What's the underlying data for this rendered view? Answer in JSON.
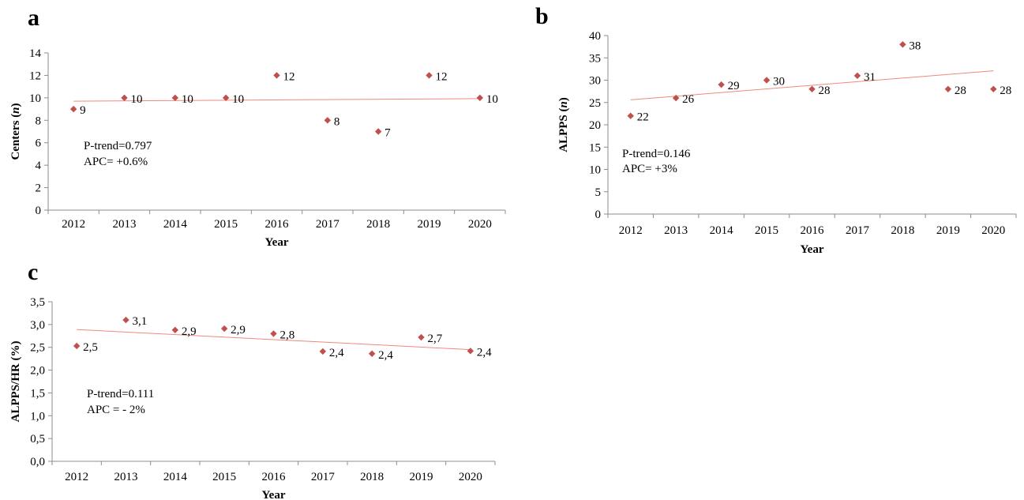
{
  "chart_data": [
    {
      "id": "a",
      "type": "scatter",
      "panel_letter": "a",
      "x": [
        "2012",
        "2013",
        "2014",
        "2015",
        "2016",
        "2017",
        "2018",
        "2019",
        "2020"
      ],
      "values": [
        9,
        10,
        10,
        10,
        12,
        8,
        7,
        12,
        10
      ],
      "value_labels": [
        "9",
        "10",
        "10",
        "10",
        "12",
        "8",
        "7",
        "12",
        "10"
      ],
      "trend": [
        9.7,
        9.93
      ],
      "xlabel": "Year",
      "ylabel_text": "Centers (",
      "ylabel_italic": "n",
      "ylabel_close": ")",
      "ylim": [
        0,
        14
      ],
      "yticks": [
        0,
        2,
        4,
        6,
        8,
        10,
        12,
        14
      ],
      "ytick_labels": [
        "0",
        "2",
        "4",
        "6",
        "8",
        "10",
        "12",
        "14"
      ],
      "stats": [
        "P-trend=0.797",
        "APC= +0.6%"
      ]
    },
    {
      "id": "b",
      "type": "scatter",
      "panel_letter": "b",
      "x": [
        "2012",
        "2013",
        "2014",
        "2015",
        "2016",
        "2017",
        "2018",
        "2019",
        "2020"
      ],
      "values": [
        22,
        26,
        29,
        30,
        28,
        31,
        38,
        28,
        28
      ],
      "value_labels": [
        "22",
        "26",
        "29",
        "30",
        "28",
        "31",
        "38",
        "28",
        "28"
      ],
      "trend": [
        25.6,
        32.1
      ],
      "xlabel": "Year",
      "ylabel_text": "ALPPS (",
      "ylabel_italic": "n",
      "ylabel_close": ")",
      "ylim": [
        0,
        40
      ],
      "yticks": [
        0,
        5,
        10,
        15,
        20,
        25,
        30,
        35,
        40
      ],
      "ytick_labels": [
        "0",
        "5",
        "10",
        "15",
        "20",
        "25",
        "30",
        "35",
        "40"
      ],
      "stats": [
        "P-trend=0.146",
        "APC= +3%"
      ]
    },
    {
      "id": "c",
      "type": "scatter",
      "panel_letter": "c",
      "x": [
        "2012",
        "2013",
        "2014",
        "2015",
        "2016",
        "2017",
        "2018",
        "2019",
        "2020"
      ],
      "values": [
        2.53,
        3.1,
        2.88,
        2.91,
        2.8,
        2.41,
        2.36,
        2.72,
        2.42
      ],
      "value_labels": [
        "2,5",
        "3,1",
        "2,9",
        "2,9",
        "2,8",
        "2,4",
        "2,4",
        "2,7",
        "2,4"
      ],
      "trend": [
        2.89,
        2.45
      ],
      "xlabel": "Year",
      "ylabel_text": "ALPPS/HR (%)",
      "ylabel_italic": "",
      "ylabel_close": "",
      "ylim": [
        0,
        3.5
      ],
      "yticks": [
        0,
        0.5,
        1,
        1.5,
        2,
        2.5,
        3,
        3.5
      ],
      "ytick_labels": [
        "0,0",
        "0,5",
        "1,0",
        "1,5",
        "2,0",
        "2,5",
        "3,0",
        "3,5"
      ],
      "stats": [
        "P-trend=0.111",
        "APC = - 2%"
      ]
    }
  ]
}
